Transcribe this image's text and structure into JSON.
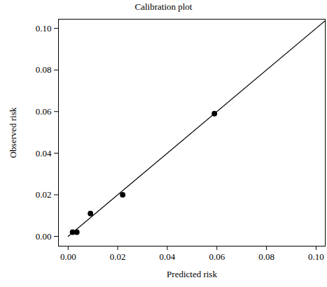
{
  "chart_data": {
    "type": "scatter",
    "title": "Calibration plot",
    "x_label": "Predicted risk",
    "y_label": "Observed risk",
    "x": [
      0.0018,
      0.0035,
      0.009,
      0.022,
      0.059
    ],
    "values": [
      0.002,
      0.002,
      0.011,
      0.02,
      0.059
    ],
    "color": "#000000",
    "marker": "circle",
    "reference_line": {
      "x": [
        0,
        0.1037
      ],
      "y": [
        0,
        0.1037
      ],
      "color": "#000000",
      "line_style": "solid"
    },
    "xlim": [
      -0.0039,
      0.1037
    ],
    "ylim": [
      -0.0047,
      0.1044
    ],
    "xticks": [
      {
        "value": 0,
        "label": "0.00"
      },
      {
        "value": 0.02,
        "label": "0.02"
      },
      {
        "value": 0.04,
        "label": "0.04"
      },
      {
        "value": 0.06,
        "label": "0.06"
      },
      {
        "value": 0.08,
        "label": "0.08"
      },
      {
        "value": 0.1,
        "label": "0.10"
      }
    ],
    "yticks": [
      {
        "value": 0,
        "label": "0.00"
      },
      {
        "value": 0.02,
        "label": "0.02"
      },
      {
        "value": 0.04,
        "label": "0.04"
      },
      {
        "value": 0.06,
        "label": "0.06"
      },
      {
        "value": 0.08,
        "label": "0.08"
      },
      {
        "value": 0.1,
        "label": "0.10"
      }
    ],
    "grid": false
  }
}
